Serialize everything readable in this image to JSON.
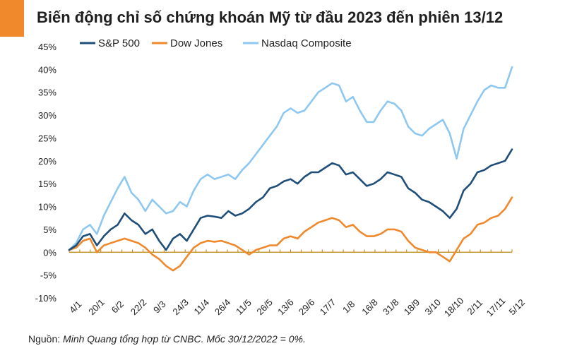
{
  "header": {
    "title": "Biến động chỉ số chứng khoán Mỹ từ đầu 2023 đến phiên 13/12",
    "accent_color": "#F0882C"
  },
  "footer": {
    "source_label": "Nguồn: ",
    "source_text": "Minh Quang tổng hợp từ CNBC. Mốc 30/12/2022 = 0%."
  },
  "chart_data": {
    "type": "line",
    "title": "Biến động chỉ số chứng khoán Mỹ từ đầu 2023 đến phiên 13/12",
    "xlabel": "",
    "ylabel": "",
    "ylim": [
      -10,
      45
    ],
    "yticks": [
      -10,
      -5,
      0,
      5,
      10,
      15,
      20,
      25,
      30,
      35,
      40,
      45
    ],
    "ytick_labels": [
      "-10%",
      "-5%",
      "0%",
      "5%",
      "10%",
      "15%",
      "20%",
      "25%",
      "30%",
      "35%",
      "40%",
      "45%"
    ],
    "x_tick_labels": [
      "4/1",
      "20/1",
      "6/2",
      "22/2",
      "9/3",
      "24/3",
      "11/4",
      "26/4",
      "11/5",
      "26/5",
      "13/6",
      "29/6",
      "17/7",
      "1/8",
      "16/8",
      "31/8",
      "18/9",
      "3/10",
      "18/10",
      "2/11",
      "17/11",
      "5/12"
    ],
    "legend_position": "top",
    "grid": false,
    "series": [
      {
        "name": "S&P 500",
        "color": "#1F4E79",
        "values": [
          0.5,
          1.5,
          3.5,
          4.0,
          1.5,
          3.5,
          5.0,
          6.0,
          8.5,
          7.0,
          6.0,
          4.0,
          5.0,
          2.5,
          0.5,
          3.0,
          4.0,
          2.5,
          5.0,
          7.5,
          8.0,
          7.8,
          7.5,
          9.0,
          8.0,
          8.5,
          9.5,
          11.0,
          12.0,
          14.0,
          14.5,
          15.5,
          16.0,
          15.0,
          16.5,
          17.5,
          17.5,
          18.5,
          19.5,
          19.0,
          17.0,
          17.5,
          16.0,
          14.5,
          15.0,
          16.0,
          17.5,
          17.0,
          16.5,
          14.0,
          13.0,
          11.5,
          11.0,
          10.0,
          9.0,
          7.5,
          9.5,
          13.5,
          15.0,
          17.5,
          18.0,
          19.0,
          19.5,
          20.0,
          22.5
        ]
      },
      {
        "name": "Dow Jones",
        "color": "#F0882C",
        "values": [
          0.5,
          1.0,
          2.5,
          3.0,
          0.0,
          1.5,
          2.0,
          2.5,
          3.0,
          2.5,
          2.0,
          1.0,
          -0.5,
          -1.5,
          -3.0,
          -4.0,
          -3.0,
          -1.0,
          1.0,
          2.0,
          2.5,
          2.3,
          2.5,
          2.0,
          1.5,
          0.5,
          -0.5,
          0.5,
          1.0,
          1.5,
          1.5,
          3.0,
          3.5,
          3.0,
          4.5,
          5.5,
          6.5,
          7.0,
          7.5,
          7.0,
          5.5,
          6.0,
          4.5,
          3.5,
          3.5,
          4.0,
          5.0,
          5.0,
          4.5,
          2.5,
          1.0,
          0.5,
          0.0,
          0.0,
          -1.0,
          -2.0,
          0.5,
          3.0,
          4.0,
          6.0,
          6.5,
          7.5,
          8.0,
          9.5,
          12.0
        ]
      },
      {
        "name": "Nasdaq Composite",
        "color": "#8EC8F0",
        "values": [
          0.5,
          2.0,
          5.0,
          6.0,
          4.0,
          8.0,
          11.0,
          14.0,
          16.5,
          13.0,
          11.5,
          9.0,
          11.5,
          10.0,
          8.5,
          9.0,
          11.0,
          10.0,
          13.5,
          16.0,
          17.0,
          16.0,
          16.5,
          17.0,
          16.0,
          18.0,
          19.5,
          21.5,
          23.5,
          25.5,
          27.5,
          30.5,
          31.5,
          30.5,
          31.0,
          33.0,
          35.0,
          36.0,
          37.0,
          36.5,
          33.0,
          34.0,
          31.0,
          28.5,
          28.5,
          31.0,
          33.0,
          32.5,
          31.0,
          27.5,
          26.0,
          25.5,
          27.0,
          28.0,
          29.0,
          26.0,
          20.5,
          27.0,
          30.0,
          33.0,
          35.5,
          36.5,
          36.0,
          36.0,
          40.5
        ]
      }
    ]
  }
}
